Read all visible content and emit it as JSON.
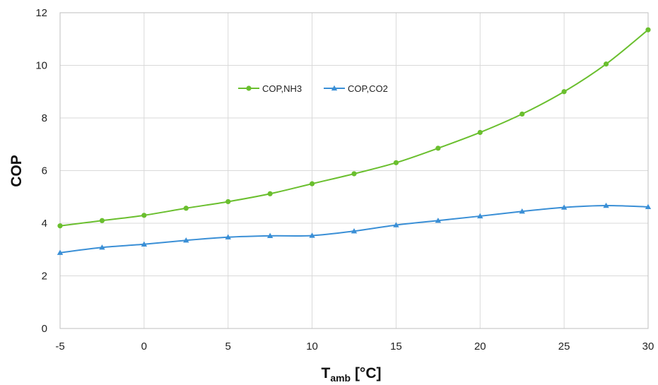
{
  "chart_data": {
    "type": "line",
    "title": "",
    "xlabel": {
      "main": "T",
      "sub": "amb",
      "unit": " [°C]"
    },
    "ylabel": "COP",
    "xlim": [
      -5,
      30
    ],
    "ylim": [
      0,
      12
    ],
    "x_ticks": [
      -5,
      0,
      5,
      10,
      15,
      20,
      25,
      30
    ],
    "y_ticks": [
      0,
      2,
      4,
      6,
      8,
      10,
      12
    ],
    "grid": true,
    "legend_position": "top-center",
    "x": [
      -5,
      -2.5,
      0,
      2.5,
      5,
      7.5,
      10,
      12.5,
      15,
      17.5,
      20,
      22.5,
      25,
      27.5,
      30
    ],
    "series": [
      {
        "name": "COP,NH3",
        "color": "#6abf2e",
        "marker": "circle",
        "values": [
          3.9,
          4.1,
          4.3,
          4.57,
          4.82,
          5.12,
          5.5,
          5.88,
          6.3,
          6.85,
          7.45,
          8.15,
          9.0,
          10.05,
          11.35
        ]
      },
      {
        "name": "COP,CO2",
        "color": "#3a8fd6",
        "marker": "triangle",
        "values": [
          2.88,
          3.08,
          3.2,
          3.35,
          3.47,
          3.52,
          3.53,
          3.7,
          3.93,
          4.1,
          4.27,
          4.45,
          4.6,
          4.67,
          4.62
        ]
      }
    ]
  }
}
